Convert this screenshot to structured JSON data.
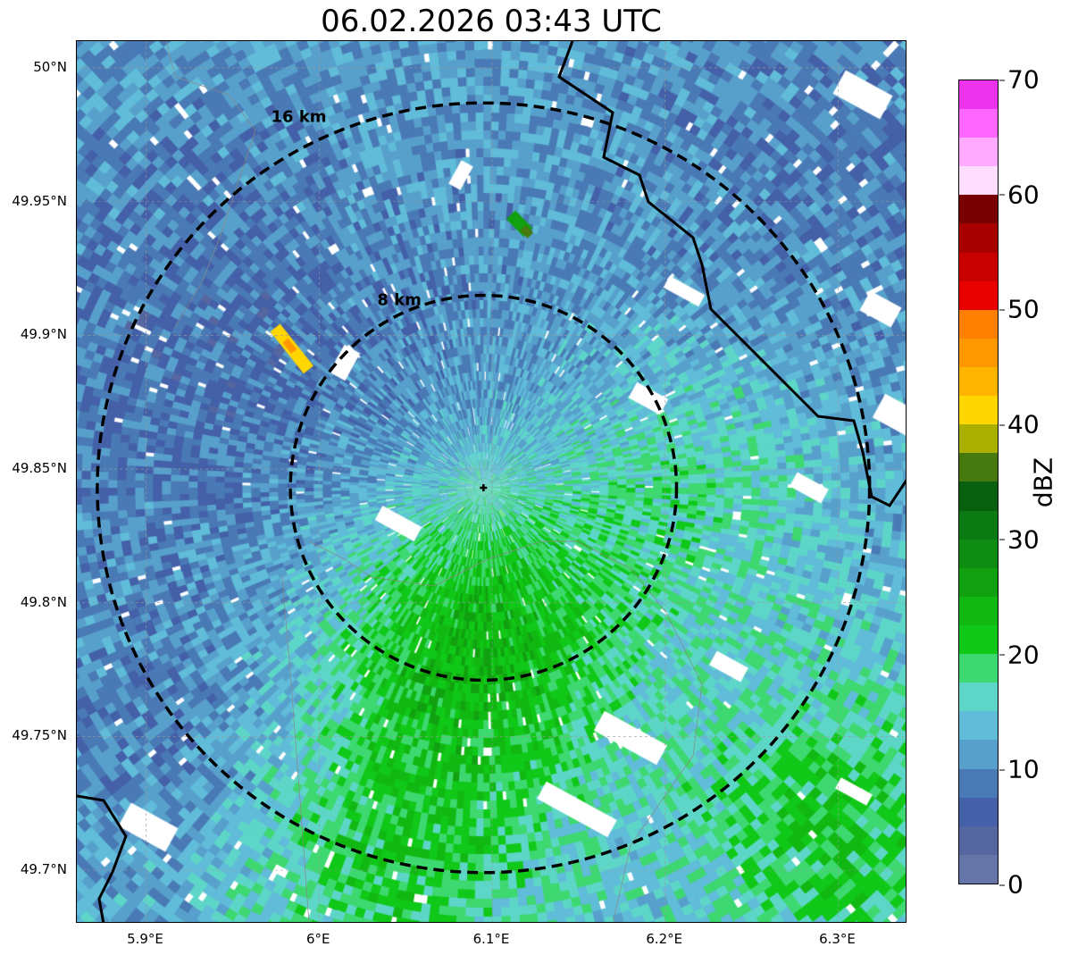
{
  "title": "06.02.2026 03:43 UTC",
  "map": {
    "lon_range": [
      5.86,
      6.34
    ],
    "lat_range": [
      49.68,
      50.01
    ],
    "radar_center": {
      "lon": 6.095,
      "lat": 49.843
    },
    "range_rings": [
      {
        "label": "8 km",
        "km": 8
      },
      {
        "label": "16 km",
        "km": 16
      }
    ],
    "lon_ticks": [
      {
        "v": 5.9,
        "label": "5.9°E"
      },
      {
        "v": 6.0,
        "label": "6°E"
      },
      {
        "v": 6.1,
        "label": "6.1°E"
      },
      {
        "v": 6.2,
        "label": "6.2°E"
      },
      {
        "v": 6.3,
        "label": "6.3°E"
      }
    ],
    "lat_ticks": [
      {
        "v": 50.0,
        "label": "50°N"
      },
      {
        "v": 49.95,
        "label": "49.95°N"
      },
      {
        "v": 49.9,
        "label": "49.9°N"
      },
      {
        "v": 49.85,
        "label": "49.85°N"
      },
      {
        "v": 49.8,
        "label": "49.8°N"
      },
      {
        "v": 49.75,
        "label": "49.75°N"
      },
      {
        "v": 49.7,
        "label": "49.7°N"
      }
    ]
  },
  "colorbar": {
    "label": "dBZ",
    "min": 0,
    "max": 70,
    "ticks": [
      "0",
      "10",
      "20",
      "30",
      "40",
      "50",
      "60",
      "70"
    ],
    "colors": [
      "#6675a8",
      "#5566a0",
      "#4460a8",
      "#4a7ab5",
      "#58a0cc",
      "#60bcd8",
      "#5dd6c8",
      "#3ed870",
      "#10c818",
      "#12b812",
      "#10a010",
      "#0e8c12",
      "#0b7a12",
      "#06600e",
      "#467a10",
      "#aab000",
      "#ffd600",
      "#ffb400",
      "#ff9800",
      "#ff8000",
      "#e80000",
      "#c80000",
      "#a80000",
      "#780000",
      "#ffddff",
      "#ffaaff",
      "#ff66ff",
      "#ee33ee"
    ]
  }
}
